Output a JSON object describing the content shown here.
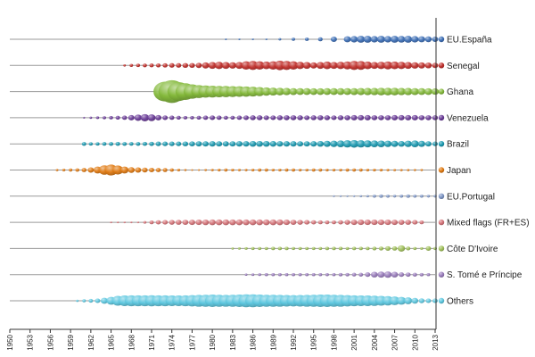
{
  "chart_data": {
    "type": "scatter",
    "xlabel": "",
    "ylabel": "",
    "xlim": [
      1950,
      2013
    ],
    "x_ticks": [
      "1950",
      "1953",
      "1956",
      "1959",
      "1962",
      "1965",
      "1968",
      "1971",
      "1974",
      "1977",
      "1980",
      "1983",
      "1986",
      "1989",
      "1992",
      "1995",
      "1998",
      "2001",
      "2004",
      "2007",
      "2010",
      "2013"
    ],
    "grid": false,
    "legend_position": "right",
    "series": [
      {
        "name": "EU.España",
        "color": "#3d6fb6",
        "years": [
          1982,
          1984,
          1986,
          1988,
          1990,
          1992,
          1994,
          1996,
          1998,
          2000,
          2001,
          2002,
          2003,
          2004,
          2005,
          2006,
          2007,
          2008,
          2009,
          2010,
          2011,
          2012,
          2013
        ],
        "sizes": [
          0.05,
          0.06,
          0.08,
          0.12,
          0.16,
          0.2,
          0.22,
          0.26,
          0.35,
          0.4,
          0.42,
          0.45,
          0.45,
          0.42,
          0.45,
          0.42,
          0.45,
          0.44,
          0.45,
          0.42,
          0.4,
          0.38,
          0.35
        ]
      },
      {
        "name": "Senegal",
        "color": "#c0302c",
        "years": [
          1967,
          1968,
          1969,
          1970,
          1971,
          1972,
          1973,
          1974,
          1975,
          1976,
          1977,
          1978,
          1979,
          1980,
          1981,
          1982,
          1983,
          1984,
          1985,
          1986,
          1987,
          1988,
          1989,
          1990,
          1991,
          1992,
          1993,
          1994,
          1995,
          1996,
          1997,
          1998,
          1999,
          2000,
          2001,
          2002,
          2003,
          2004,
          2005,
          2006,
          2007,
          2008,
          2009,
          2010,
          2011,
          2012,
          2013
        ],
        "sizes": [
          0.15,
          0.2,
          0.22,
          0.24,
          0.25,
          0.26,
          0.28,
          0.3,
          0.3,
          0.32,
          0.32,
          0.34,
          0.4,
          0.45,
          0.48,
          0.45,
          0.42,
          0.45,
          0.55,
          0.6,
          0.55,
          0.5,
          0.55,
          0.62,
          0.6,
          0.55,
          0.48,
          0.45,
          0.4,
          0.45,
          0.5,
          0.45,
          0.48,
          0.52,
          0.6,
          0.58,
          0.5,
          0.45,
          0.48,
          0.52,
          0.5,
          0.48,
          0.45,
          0.42,
          0.4,
          0.38,
          0.35
        ]
      },
      {
        "name": "Ghana",
        "color": "#84b93b",
        "years": [
          1973,
          1974,
          1975,
          1976,
          1977,
          1978,
          1979,
          1980,
          1981,
          1982,
          1983,
          1984,
          1985,
          1986,
          1987,
          1988,
          1989,
          1990,
          1991,
          1992,
          1993,
          1994,
          1995,
          1996,
          1997,
          1998,
          1999,
          2000,
          2001,
          2002,
          2003,
          2004,
          2005,
          2006,
          2007,
          2008,
          2009,
          2010,
          2011,
          2012,
          2013
        ],
        "sizes": [
          1.3,
          1.5,
          1.25,
          1.1,
          0.95,
          0.85,
          0.8,
          0.78,
          0.75,
          0.74,
          0.72,
          0.7,
          0.68,
          0.65,
          0.6,
          0.55,
          0.52,
          0.5,
          0.48,
          0.46,
          0.45,
          0.45,
          0.44,
          0.44,
          0.45,
          0.45,
          0.45,
          0.45,
          0.46,
          0.47,
          0.48,
          0.48,
          0.5,
          0.5,
          0.5,
          0.48,
          0.48,
          0.46,
          0.45,
          0.44,
          0.42
        ]
      },
      {
        "name": "Venezuela",
        "color": "#6b3c98",
        "years": [
          1961,
          1962,
          1963,
          1964,
          1965,
          1966,
          1967,
          1968,
          1969,
          1970,
          1971,
          1972,
          1973,
          1974,
          1975,
          1976,
          1977,
          1978,
          1979,
          1980,
          1981,
          1982,
          1983,
          1984,
          1985,
          1986,
          1987,
          1988,
          1989,
          1990,
          1991,
          1992,
          1993,
          1994,
          1995,
          1996,
          1997,
          1998,
          1999,
          2000,
          2001,
          2002,
          2003,
          2004,
          2005,
          2006,
          2007,
          2008,
          2009,
          2010,
          2011,
          2012,
          2013
        ],
        "sizes": [
          0.12,
          0.15,
          0.18,
          0.2,
          0.22,
          0.25,
          0.28,
          0.35,
          0.42,
          0.48,
          0.45,
          0.35,
          0.3,
          0.28,
          0.25,
          0.22,
          0.22,
          0.25,
          0.28,
          0.3,
          0.28,
          0.25,
          0.25,
          0.28,
          0.3,
          0.32,
          0.32,
          0.3,
          0.3,
          0.32,
          0.33,
          0.33,
          0.32,
          0.3,
          0.32,
          0.33,
          0.32,
          0.3,
          0.32,
          0.33,
          0.35,
          0.35,
          0.35,
          0.33,
          0.33,
          0.33,
          0.35,
          0.35,
          0.35,
          0.35,
          0.33,
          0.33,
          0.32
        ]
      },
      {
        "name": "Brazil",
        "color": "#1d9bb2",
        "years": [
          1961,
          1962,
          1963,
          1964,
          1965,
          1966,
          1967,
          1968,
          1969,
          1970,
          1971,
          1972,
          1973,
          1974,
          1975,
          1976,
          1977,
          1978,
          1979,
          1980,
          1981,
          1982,
          1983,
          1984,
          1985,
          1986,
          1987,
          1988,
          1989,
          1990,
          1991,
          1992,
          1993,
          1994,
          1995,
          1996,
          1997,
          1998,
          1999,
          2000,
          2001,
          2002,
          2003,
          2004,
          2005,
          2006,
          2007,
          2008,
          2009,
          2010,
          2011,
          2012,
          2013
        ],
        "sizes": [
          0.25,
          0.22,
          0.22,
          0.24,
          0.25,
          0.26,
          0.25,
          0.24,
          0.25,
          0.26,
          0.28,
          0.3,
          0.3,
          0.3,
          0.3,
          0.32,
          0.33,
          0.34,
          0.35,
          0.36,
          0.35,
          0.34,
          0.35,
          0.36,
          0.36,
          0.38,
          0.38,
          0.38,
          0.37,
          0.36,
          0.36,
          0.36,
          0.35,
          0.35,
          0.36,
          0.38,
          0.4,
          0.42,
          0.45,
          0.48,
          0.5,
          0.48,
          0.46,
          0.45,
          0.44,
          0.42,
          0.4,
          0.38,
          0.42,
          0.45,
          0.4,
          0.35,
          0.3
        ]
      },
      {
        "name": "Japan",
        "color": "#e07a12",
        "years": [
          1957,
          1958,
          1959,
          1960,
          1961,
          1962,
          1963,
          1964,
          1965,
          1966,
          1967,
          1968,
          1969,
          1970,
          1971,
          1972,
          1973,
          1974,
          1975,
          1976,
          1977,
          1978,
          1979,
          1980,
          1981,
          1982,
          1983,
          1984,
          1985,
          1986,
          1987,
          1988,
          1989,
          1990,
          1991,
          1992,
          1993,
          1994,
          1995,
          1996,
          1997,
          1998,
          1999,
          2000,
          2001,
          2002,
          2003,
          2004,
          2005,
          2006,
          2007,
          2008,
          2009,
          2010,
          2011
        ],
        "sizes": [
          0.15,
          0.18,
          0.2,
          0.22,
          0.28,
          0.35,
          0.45,
          0.62,
          0.72,
          0.6,
          0.45,
          0.38,
          0.35,
          0.32,
          0.3,
          0.28,
          0.26,
          0.22,
          0.18,
          0.14,
          0.12,
          0.12,
          0.14,
          0.16,
          0.18,
          0.2,
          0.18,
          0.16,
          0.16,
          0.18,
          0.2,
          0.2,
          0.18,
          0.18,
          0.2,
          0.2,
          0.18,
          0.18,
          0.2,
          0.2,
          0.18,
          0.18,
          0.18,
          0.2,
          0.2,
          0.2,
          0.18,
          0.18,
          0.18,
          0.16,
          0.15,
          0.15,
          0.15,
          0.14,
          0.14
        ]
      },
      {
        "name": "EU.Portugal",
        "color": "#7f97c6",
        "years": [
          1998,
          1999,
          2000,
          2001,
          2002,
          2003,
          2004,
          2005,
          2006,
          2007,
          2008,
          2009,
          2010,
          2011,
          2012,
          2013
        ],
        "sizes": [
          0.05,
          0.06,
          0.08,
          0.12,
          0.14,
          0.16,
          0.2,
          0.22,
          0.2,
          0.18,
          0.2,
          0.22,
          0.2,
          0.2,
          0.18,
          0.18
        ]
      },
      {
        "name": "Mixed flags (FR+ES)",
        "color": "#d6757a",
        "years": [
          1965,
          1966,
          1967,
          1968,
          1969,
          1970,
          1971,
          1972,
          1973,
          1974,
          1975,
          1976,
          1977,
          1978,
          1979,
          1980,
          1981,
          1982,
          1983,
          1984,
          1985,
          1986,
          1987,
          1988,
          1989,
          1990,
          1991,
          1992,
          1993,
          1994,
          1995,
          1996,
          1997,
          1998,
          1999,
          2000,
          2001,
          2002,
          2003,
          2004,
          2005,
          2006,
          2007,
          2008,
          2009,
          2010,
          2011
        ],
        "sizes": [
          0.04,
          0.05,
          0.06,
          0.08,
          0.12,
          0.18,
          0.25,
          0.28,
          0.3,
          0.32,
          0.33,
          0.34,
          0.35,
          0.36,
          0.37,
          0.38,
          0.38,
          0.38,
          0.38,
          0.38,
          0.38,
          0.38,
          0.38,
          0.38,
          0.38,
          0.38,
          0.36,
          0.34,
          0.32,
          0.3,
          0.28,
          0.26,
          0.25,
          0.25,
          0.28,
          0.32,
          0.35,
          0.36,
          0.36,
          0.36,
          0.36,
          0.36,
          0.35,
          0.34,
          0.33,
          0.3,
          0.25
        ]
      },
      {
        "name": "Côte D'Ivoire",
        "color": "#a0c05a",
        "years": [
          1983,
          1984,
          1985,
          1986,
          1987,
          1988,
          1989,
          1990,
          1991,
          1992,
          1993,
          1994,
          1995,
          1996,
          1997,
          1998,
          1999,
          2000,
          2001,
          2002,
          2003,
          2004,
          2005,
          2006,
          2007,
          2008,
          2009,
          2010,
          2011,
          2012,
          2013
        ],
        "sizes": [
          0.15,
          0.16,
          0.18,
          0.2,
          0.2,
          0.2,
          0.22,
          0.22,
          0.22,
          0.2,
          0.2,
          0.2,
          0.2,
          0.2,
          0.22,
          0.22,
          0.22,
          0.2,
          0.22,
          0.22,
          0.22,
          0.24,
          0.26,
          0.3,
          0.28,
          0.42,
          0.25,
          0.2,
          0.18,
          0.3,
          0.2
        ]
      },
      {
        "name": "S. Tomé e Príncipe",
        "color": "#9a7dbd",
        "years": [
          1985,
          1986,
          1987,
          1988,
          1989,
          1990,
          1991,
          1992,
          1993,
          1994,
          1995,
          1996,
          1997,
          1998,
          1999,
          2000,
          2001,
          2002,
          2003,
          2004,
          2005,
          2006,
          2007,
          2008,
          2009,
          2010,
          2011,
          2012
        ],
        "sizes": [
          0.15,
          0.17,
          0.18,
          0.2,
          0.2,
          0.2,
          0.2,
          0.2,
          0.2,
          0.2,
          0.2,
          0.2,
          0.2,
          0.2,
          0.22,
          0.22,
          0.24,
          0.25,
          0.3,
          0.38,
          0.4,
          0.42,
          0.38,
          0.3,
          0.28,
          0.25,
          0.22,
          0.2
        ]
      },
      {
        "name": "Others",
        "color": "#5ec8e0",
        "years": [
          1960,
          1961,
          1962,
          1963,
          1964,
          1965,
          1966,
          1967,
          1968,
          1969,
          1970,
          1971,
          1972,
          1973,
          1974,
          1975,
          1976,
          1977,
          1978,
          1979,
          1980,
          1981,
          1982,
          1983,
          1984,
          1985,
          1986,
          1987,
          1988,
          1989,
          1990,
          1991,
          1992,
          1993,
          1994,
          1995,
          1996,
          1997,
          1998,
          1999,
          2000,
          2001,
          2002,
          2003,
          2004,
          2005,
          2006,
          2007,
          2008,
          2009,
          2010,
          2011,
          2012,
          2013
        ],
        "sizes": [
          0.15,
          0.2,
          0.25,
          0.3,
          0.4,
          0.52,
          0.65,
          0.7,
          0.72,
          0.72,
          0.72,
          0.73,
          0.72,
          0.72,
          0.7,
          0.7,
          0.72,
          0.75,
          0.78,
          0.8,
          0.82,
          0.8,
          0.78,
          0.8,
          0.82,
          0.85,
          0.85,
          0.82,
          0.8,
          0.8,
          0.78,
          0.76,
          0.75,
          0.76,
          0.78,
          0.8,
          0.82,
          0.82,
          0.8,
          0.78,
          0.75,
          0.72,
          0.7,
          0.7,
          0.68,
          0.65,
          0.62,
          0.58,
          0.52,
          0.45,
          0.38,
          0.32,
          0.3,
          0.3
        ]
      }
    ]
  }
}
